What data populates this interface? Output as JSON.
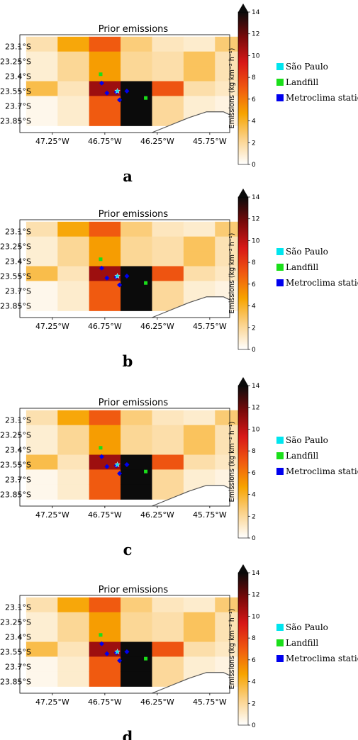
{
  "colors": {
    "colormap": [
      "#ffffff",
      "#fbd28a",
      "#f7a400",
      "#f05a10",
      "#d81818",
      "#7a0a0a",
      "#0b0b0b"
    ],
    "coastline": "#555555",
    "sao_paulo_marker": "#00e5ee",
    "landfill_marker": "#1adf1a",
    "station_marker": "#0000ee",
    "axes_frame": "#000000"
  },
  "chart_data": [
    {
      "type": "heatmap",
      "panel_label": "a",
      "title": "Prior emissions",
      "x_ticks": [
        "47.25°W",
        "46.75°W",
        "46.25°W",
        "45.75°W"
      ],
      "y_ticks": [
        "23.1°S",
        "23.25°S",
        "23.4°S",
        "23.55°S",
        "23.7°S",
        "23.85°S"
      ],
      "cells": [
        [
          1.6,
          4.5,
          7.0,
          2.6,
          1.3,
          1.0,
          2.7
        ],
        [
          0.9,
          2.1,
          4.9,
          2.1,
          1.7,
          3.1,
          1.5
        ],
        [
          3.4,
          1.4,
          10.8,
          14.0,
          7.2,
          1.7,
          1.2
        ],
        [
          0.4,
          1.0,
          7.0,
          14.0,
          2.0,
          0.9,
          0.6
        ]
      ],
      "colorbar": {
        "label": "Emissions (kg km⁻² h⁻¹)",
        "min": 0,
        "max": 14,
        "ticks": [
          "0",
          "2",
          "4",
          "6",
          "8",
          "10",
          "12",
          "14"
        ]
      },
      "legend": [
        "São Paulo",
        "Landfill",
        "Metroclima stations"
      ]
    },
    {
      "type": "heatmap",
      "panel_label": "b",
      "title": "Prior emissions",
      "x_ticks": [
        "47.25°W",
        "46.75°W",
        "46.25°W",
        "45.75°W"
      ],
      "y_ticks": [
        "23.1°S",
        "23.25°S",
        "23.4°S",
        "23.55°S",
        "23.7°S",
        "23.85°S"
      ],
      "colorbar": {
        "label": "Emissions (kg km⁻² h⁻¹)",
        "min": 0,
        "max": 14,
        "ticks": [
          "0",
          "2",
          "4",
          "6",
          "8",
          "10",
          "12",
          "14"
        ]
      },
      "legend": [
        "São Paulo",
        "Landfill",
        "Metroclima stations"
      ]
    },
    {
      "type": "heatmap",
      "panel_label": "c",
      "title": "Prior emissions",
      "x_ticks": [
        "47.25°W",
        "46.75°W",
        "46.25°W",
        "45.75°W"
      ],
      "y_ticks": [
        "23.1°S",
        "23.25°S",
        "23.4°S",
        "23.55°S",
        "23.7°S",
        "23.85°S"
      ],
      "colorbar": {
        "label": "Emissions (kg km⁻² h⁻¹)",
        "min": 0,
        "max": 14,
        "ticks": [
          "0",
          "2",
          "4",
          "6",
          "8",
          "10",
          "12",
          "14"
        ]
      },
      "legend": [
        "São Paulo",
        "Landfill",
        "Metroclima stations"
      ]
    },
    {
      "type": "heatmap",
      "panel_label": "d",
      "title": "Prior emissions",
      "x_ticks": [
        "47.25°W",
        "46.75°W",
        "46.25°W",
        "45.75°W"
      ],
      "y_ticks": [
        "23.1°S",
        "23.25°S",
        "23.4°S",
        "23.55°S",
        "23.7°S",
        "23.85°S"
      ],
      "colorbar": {
        "label": "Emissions (kg km⁻² h⁻¹)",
        "min": 0,
        "max": 14,
        "ticks": [
          "0",
          "2",
          "4",
          "6",
          "8",
          "10",
          "12",
          "14"
        ]
      },
      "legend": [
        "São Paulo",
        "Landfill",
        "Metroclima stations"
      ]
    }
  ]
}
